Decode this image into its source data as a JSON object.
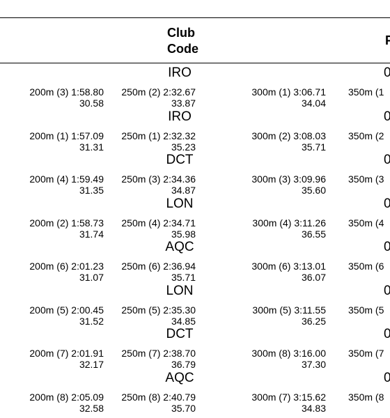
{
  "header": {
    "club_code": [
      "Club",
      "Code"
    ],
    "cropped": "F"
  },
  "rows": [
    {
      "club": "IRO",
      "tail": "0",
      "splits": [
        {
          "label": "200m  (3) 1:58.80",
          "split": "30.58"
        },
        {
          "label": "250m  (2) 2:32.67",
          "split": "33.87"
        },
        {
          "label": "300m  (1) 3:06.71",
          "split": "34.04"
        },
        {
          "label": "350m  (1"
        }
      ]
    },
    {
      "club": "IRO",
      "tail": "0",
      "splits": [
        {
          "label": "200m  (1) 1:57.09",
          "split": "31.31"
        },
        {
          "label": "250m  (1) 2:32.32",
          "split": "35.23"
        },
        {
          "label": "300m  (2) 3:08.03",
          "split": "35.71"
        },
        {
          "label": "350m  (2"
        }
      ]
    },
    {
      "club": "DCT",
      "tail": "0",
      "splits": [
        {
          "label": "200m  (4) 1:59.49",
          "split": "31.35"
        },
        {
          "label": "250m  (3) 2:34.36",
          "split": "34.87"
        },
        {
          "label": "300m  (3) 3:09.96",
          "split": "35.60"
        },
        {
          "label": "350m  (3"
        }
      ]
    },
    {
      "club": "LON",
      "tail": "0",
      "splits": [
        {
          "label": "200m  (2) 1:58.73",
          "split": "31.74"
        },
        {
          "label": "250m  (4) 2:34.71",
          "split": "35.98"
        },
        {
          "label": "300m  (4) 3:11.26",
          "split": "36.55"
        },
        {
          "label": "350m  (4"
        }
      ]
    },
    {
      "club": "AQC",
      "tail": "0",
      "splits": [
        {
          "label": "200m  (6) 2:01.23",
          "split": "31.07"
        },
        {
          "label": "250m  (6) 2:36.94",
          "split": "35.71"
        },
        {
          "label": "300m  (6) 3:13.01",
          "split": "36.07"
        },
        {
          "label": "350m  (6"
        }
      ]
    },
    {
      "club": "LON",
      "tail": "0",
      "splits": [
        {
          "label": "200m  (5) 2:00.45",
          "split": "31.52"
        },
        {
          "label": "250m  (5) 2:35.30",
          "split": "34.85"
        },
        {
          "label": "300m  (5) 3:11.55",
          "split": "36.25"
        },
        {
          "label": "350m  (5"
        }
      ]
    },
    {
      "club": "DCT",
      "tail": "0",
      "splits": [
        {
          "label": "200m  (7) 2:01.91",
          "split": "32.17"
        },
        {
          "label": "250m  (7) 2:38.70",
          "split": "36.79"
        },
        {
          "label": "300m  (8) 3:16.00",
          "split": "37.30"
        },
        {
          "label": "350m  (7"
        }
      ]
    },
    {
      "club": "AQC",
      "tail": "0",
      "splits": [
        {
          "label": "200m  (8) 2:05.09",
          "split": "32.58"
        },
        {
          "label": "250m  (8) 2:40.79",
          "split": "35.70"
        },
        {
          "label": "300m  (7) 3:15.62",
          "split": "34.83"
        },
        {
          "label": "350m  (8"
        }
      ]
    }
  ]
}
